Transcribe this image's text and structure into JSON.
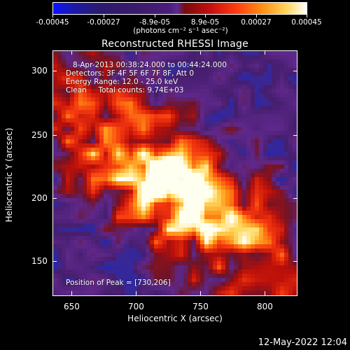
{
  "colorbar": {
    "tick_labels": [
      "-0.00045",
      "-0.00027",
      "-8.9e-05",
      "8.9e-05",
      "0.00027",
      "0.00045"
    ],
    "units_label": "(photons cm⁻² s⁻¹ asec⁻²)"
  },
  "image": {
    "title": "Reconstructed RHESSI Image",
    "info_lines": [
      "8-Apr-2013 00:38:24.000 to 00:44:24.000",
      "Detectors: 3F 4F 5F 6F 7F 8F, Att 0",
      "Energy Range: 12.0 - 25.0 keV",
      "Clean     Total counts: 9.74E+03"
    ],
    "peak_label": "Position of Peak = [730,206]",
    "xlabel": "Heliocentric X (arcsec)",
    "ylabel": "Heliocentric Y (arcsec)",
    "x_ticks": [
      "650",
      "700",
      "750",
      "800"
    ],
    "y_ticks": [
      "150",
      "200",
      "250",
      "300"
    ],
    "xlim": [
      635,
      825
    ],
    "ylim": [
      125,
      315
    ],
    "peak": [
      730,
      206
    ],
    "colormap": "blue-purple-red-orange-yellow-white"
  },
  "footer": {
    "timestamp": "12-May-2022 12:04"
  }
}
